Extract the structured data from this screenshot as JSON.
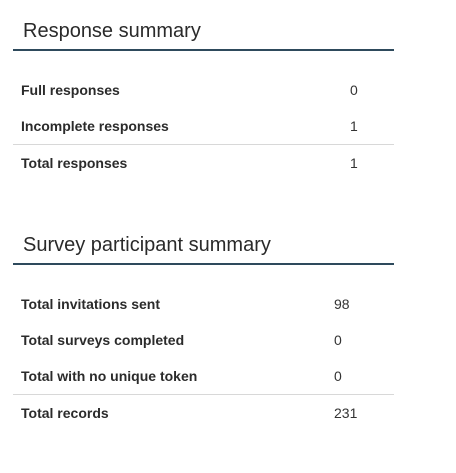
{
  "response_summary": {
    "title": "Response summary",
    "rows": [
      {
        "label": "Full responses",
        "value": "0"
      },
      {
        "label": "Incomplete responses",
        "value": "1"
      }
    ],
    "total": {
      "label": "Total responses",
      "value": "1"
    }
  },
  "participant_summary": {
    "title": "Survey participant summary",
    "rows": [
      {
        "label": "Total invitations sent",
        "value": "98"
      },
      {
        "label": "Total surveys completed",
        "value": "0"
      },
      {
        "label": "Total with no unique token",
        "value": "0"
      }
    ],
    "total": {
      "label": "Total records",
      "value": "231"
    }
  },
  "colors": {
    "heading_rule": "#2e4a5c",
    "row_divider": "#d8d8d8"
  }
}
